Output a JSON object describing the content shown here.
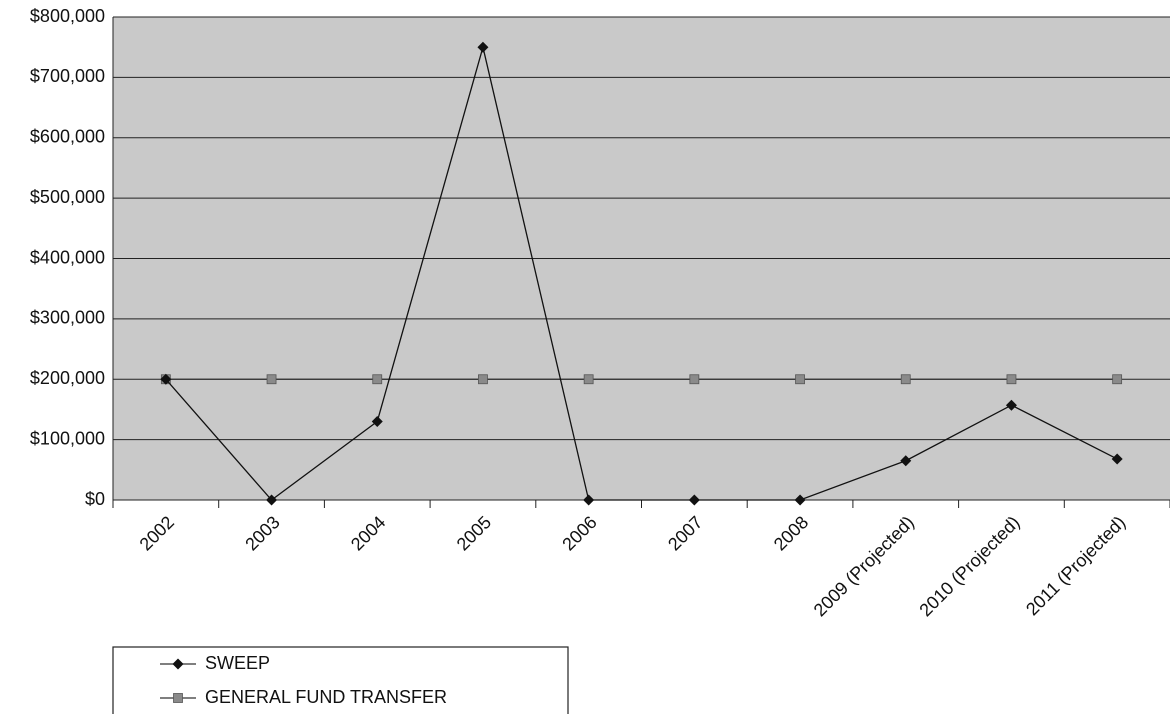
{
  "chart_data": {
    "type": "line",
    "categories": [
      "2002",
      "2003",
      "2004",
      "2005",
      "2006",
      "2007",
      "2008",
      "2009 (Projected)",
      "2010 (Projected)",
      "2011 (Projected)"
    ],
    "series": [
      {
        "name": "SWEEP",
        "color": "#111111",
        "marker": "diamond",
        "values": [
          200000,
          0,
          130000,
          750000,
          0,
          0,
          0,
          65000,
          157000,
          68000
        ]
      },
      {
        "name": "GENERAL FUND TRANSFER",
        "color": "#8a8a8a",
        "marker": "square",
        "values": [
          200000,
          200000,
          200000,
          200000,
          200000,
          200000,
          200000,
          200000,
          200000,
          200000
        ]
      }
    ],
    "ylim": [
      0,
      800000
    ],
    "yticks": [
      {
        "value": 0,
        "label": "$0"
      },
      {
        "value": 100000,
        "label": "$100,000"
      },
      {
        "value": 200000,
        "label": "$200,000"
      },
      {
        "value": 300000,
        "label": "$300,000"
      },
      {
        "value": 400000,
        "label": "$400,000"
      },
      {
        "value": 500000,
        "label": "$500,000"
      },
      {
        "value": 600000,
        "label": "$600,000"
      },
      {
        "value": 700000,
        "label": "$700,000"
      },
      {
        "value": 800000,
        "label": "$800,000"
      }
    ],
    "grid": true
  }
}
